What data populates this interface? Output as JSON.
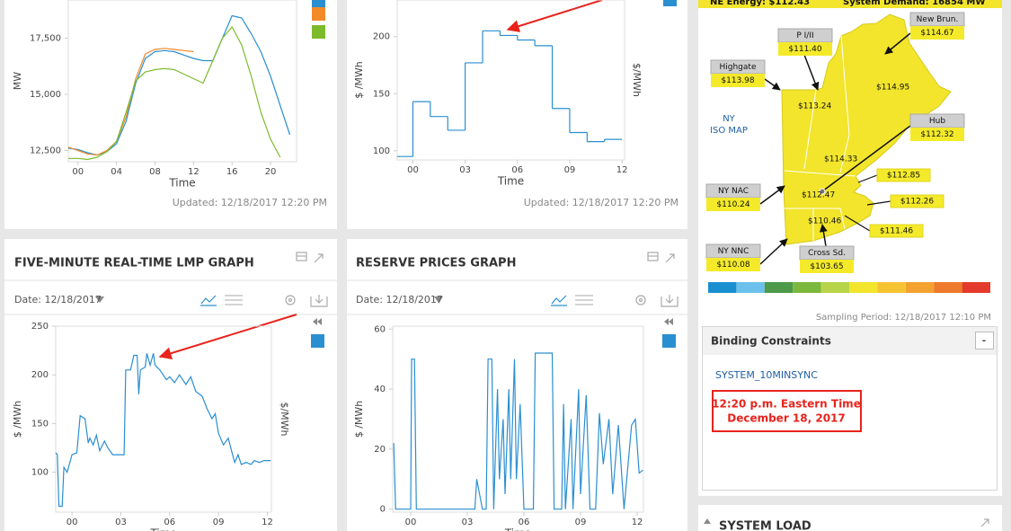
{
  "charts": [
    {
      "type": "line",
      "ylabel": "MW",
      "xlabel": "Time",
      "updated": "Updated: 12/18/2017 12:20 PM",
      "xlim": [
        -1,
        22.7
      ],
      "ylim": [
        12000,
        19200
      ],
      "xticks": [
        {
          "value": 0,
          "label": "00"
        },
        {
          "value": 4,
          "label": "04"
        },
        {
          "value": 8,
          "label": "08"
        },
        12,
        16,
        20
      ],
      "yticks": [
        {
          "value": 12500,
          "label": "12,500"
        },
        {
          "value": 15000,
          "label": "15,000"
        },
        {
          "value": 17500,
          "label": "17,500"
        }
      ],
      "series": [
        {
          "color": "#2a8fd0",
          "x": [
            -1,
            0,
            1,
            2,
            3,
            4,
            5,
            6,
            7,
            8,
            9,
            10,
            11,
            12,
            13,
            14,
            15,
            16,
            17,
            18,
            19,
            20,
            21,
            22
          ],
          "values": [
            12600,
            12550,
            12400,
            12300,
            12450,
            12800,
            13800,
            15500,
            16600,
            16900,
            16950,
            16900,
            16750,
            16600,
            16500,
            16500,
            17500,
            18500,
            18400,
            17700,
            16900,
            15800,
            14500,
            13200
          ]
        },
        {
          "color": "#f28a2a",
          "x": [
            -1,
            0,
            1,
            2,
            3,
            4,
            5,
            6,
            7,
            8,
            9,
            10,
            11,
            12
          ],
          "values": [
            12650,
            12500,
            12350,
            12300,
            12500,
            12900,
            14000,
            15700,
            16800,
            17000,
            17050,
            17000,
            16950,
            16900
          ]
        },
        {
          "color": "#7cbb2c",
          "x": [
            -1,
            0,
            1,
            2,
            3,
            4,
            5,
            6,
            7,
            8,
            9,
            10,
            11,
            12,
            13,
            14,
            15,
            16,
            17,
            18,
            19,
            20,
            21
          ],
          "values": [
            12150,
            12150,
            12100,
            12200,
            12450,
            12900,
            14200,
            15600,
            16000,
            16100,
            16150,
            16100,
            15900,
            15700,
            15500,
            16500,
            17500,
            18000,
            17200,
            15800,
            14200,
            13000,
            12200
          ]
        }
      ]
    },
    {
      "type": "step",
      "ylabel": "$ /MWh",
      "y2label": "$/MWh",
      "xlabel": "Time",
      "updated": "Updated: 12/18/2017 12:20 PM",
      "xlim": [
        -0.9,
        12.15
      ],
      "ylim": [
        92,
        232
      ],
      "xticks": [
        {
          "value": 0,
          "label": "00"
        },
        {
          "value": 3,
          "label": "03"
        },
        {
          "value": 6,
          "label": "06"
        },
        {
          "value": 9,
          "label": "09"
        },
        12
      ],
      "yticks": [
        100,
        150,
        200
      ],
      "series": [
        {
          "color": "#2a8fd0",
          "bins": [
            -0.9,
            0,
            1,
            2,
            3,
            4,
            5,
            6,
            7,
            8,
            9,
            10,
            11,
            12
          ],
          "values": [
            95,
            143,
            130,
            118,
            177,
            205,
            201,
            197,
            192,
            137,
            116,
            108,
            110
          ]
        }
      ]
    },
    {
      "type": "line",
      "title": "FIVE-MINUTE REAL-TIME LMP GRAPH",
      "date": "Date: 12/18/2017",
      "ylabel": "$ /MWh",
      "y2label": "$/MWh",
      "xlabel": "Time",
      "xlim": [
        -1,
        12.25
      ],
      "ylim": [
        59,
        250
      ],
      "xticks": [
        {
          "value": 0,
          "label": "00"
        },
        {
          "value": 3,
          "label": "03"
        },
        {
          "value": 6,
          "label": "06"
        },
        {
          "value": 9,
          "label": "09"
        },
        12
      ],
      "yticks": [
        100,
        150,
        200,
        250
      ],
      "series": [
        {
          "color": "#2a8fd0",
          "x": [
            -1,
            -0.9,
            -0.8,
            -0.6,
            -0.5,
            -0.3,
            0,
            0.3,
            0.5,
            0.8,
            1,
            1.1,
            1.3,
            1.5,
            1.7,
            2,
            2.2,
            2.5,
            3,
            3.2,
            3.3,
            3.6,
            3.8,
            4,
            4.1,
            4.2,
            4.5,
            4.6,
            4.8,
            5,
            5.1,
            5.4,
            5.8,
            6,
            6.3,
            6.6,
            7,
            7.3,
            7.6,
            8,
            8.3,
            8.6,
            8.8,
            9,
            9.3,
            9.6,
            9.8,
            10,
            10.2,
            10.4,
            10.7,
            11,
            11.2,
            11.5,
            11.8,
            12.2
          ],
          "values": [
            120,
            118,
            65,
            65,
            105,
            100,
            118,
            120,
            158,
            155,
            130,
            135,
            128,
            138,
            122,
            132,
            125,
            118,
            118,
            118,
            205,
            205,
            220,
            220,
            180,
            205,
            208,
            222,
            210,
            222,
            210,
            205,
            195,
            198,
            192,
            200,
            190,
            198,
            183,
            178,
            165,
            155,
            160,
            140,
            128,
            135,
            122,
            110,
            118,
            108,
            110,
            108,
            112,
            110,
            112,
            112
          ]
        }
      ]
    },
    {
      "type": "line",
      "title": "RESERVE PRICES GRAPH",
      "date": "Date: 12/18/2017",
      "ylabel": "$ /MWh",
      "xlabel": "Time",
      "xlim": [
        -0.95,
        12.33
      ],
      "ylim": [
        -1,
        61
      ],
      "xticks": [
        {
          "value": 0,
          "label": "00"
        },
        {
          "value": 3,
          "label": "03"
        },
        {
          "value": 6,
          "label": "06"
        },
        {
          "value": 9,
          "label": "09"
        },
        12
      ],
      "yticks": [
        0,
        20,
        40,
        60
      ],
      "series": [
        {
          "color": "#2a8fd0",
          "x": [
            -0.9,
            -0.8,
            0,
            0.05,
            0.2,
            0.3,
            3.4,
            3.5,
            3.8,
            4,
            4.1,
            4.3,
            4.4,
            4.6,
            4.7,
            4.9,
            5,
            5.2,
            5.3,
            5.5,
            5.6,
            5.8,
            6,
            6.5,
            6.6,
            7.5,
            7.6,
            8,
            8.1,
            8.2,
            8.5,
            8.6,
            8.9,
            9,
            9.3,
            9.5,
            9.8,
            10,
            10.2,
            10.5,
            10.7,
            11,
            11.3,
            11.7,
            11.9,
            12.1,
            12.3
          ],
          "values": [
            22,
            0,
            0,
            50,
            50,
            0,
            0,
            10,
            0,
            0,
            50,
            50,
            0,
            40,
            10,
            30,
            5,
            40,
            10,
            50,
            10,
            35,
            0,
            0,
            52,
            52,
            0,
            0,
            35,
            0,
            30,
            0,
            40,
            5,
            38,
            0,
            0,
            32,
            15,
            30,
            5,
            28,
            0,
            28,
            30,
            12,
            13
          ]
        }
      ]
    }
  ],
  "map": {
    "energy": "NE Energy: $112.43",
    "demand": "System Demand: 16854 MW",
    "ny": [
      "NY",
      "ISO MAP"
    ],
    "zones": [
      {
        "name": "New Brun.",
        "price": "$114.67"
      },
      {
        "name": "P I/II",
        "price": "$111.40"
      },
      {
        "name": "Highgate",
        "price": "$113.98"
      },
      {
        "name": "Hub",
        "price": "$112.32"
      },
      {
        "name": "NY NAC",
        "price": "$110.24"
      },
      {
        "name": "NY NNC",
        "price": "$110.08"
      },
      {
        "name": "Cross Sd.",
        "price": "$103.65"
      }
    ],
    "prices": [
      "$114.95",
      "$113.24",
      "$114.33",
      "$112.47",
      "$110.46",
      "$112.85",
      "$112.26",
      "$111.46"
    ],
    "sampling": "Sampling Period: 12/18/2017 12:10 PM"
  },
  "binding": {
    "title": "Binding Constraints",
    "toggle": "-",
    "constraint": "SYSTEM_10MINSYNC",
    "notice": [
      "12:20 p.m. Eastern Time",
      "December 18, 2017"
    ]
  },
  "system_load": "SYSTEM LOAD"
}
